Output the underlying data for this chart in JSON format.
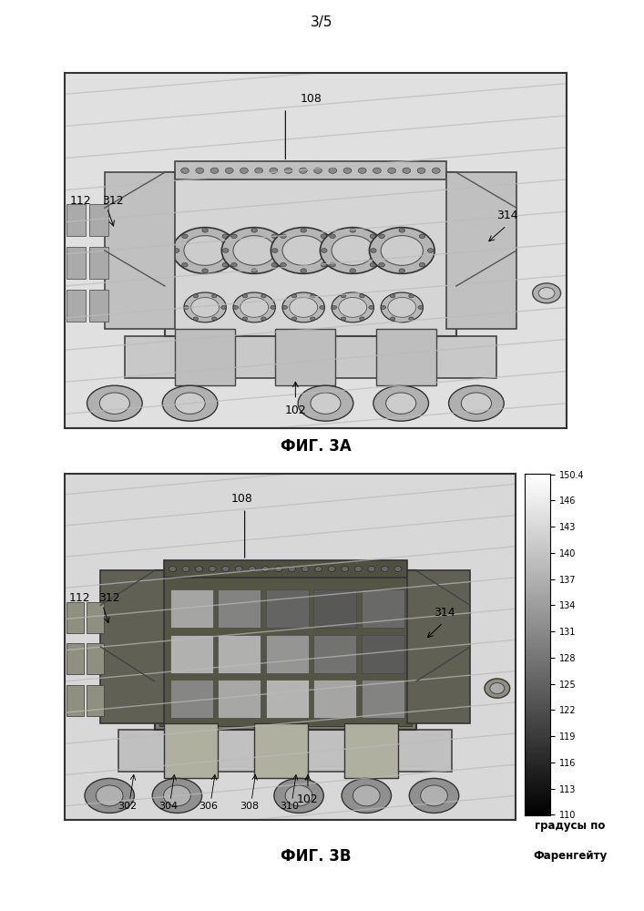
{
  "page_number": "3/5",
  "fig3a_label": "ФИГ. 3А",
  "fig3b_label": "ФИГ. 3В",
  "colorbar_values": [
    "150.4",
    "146",
    "143",
    "140",
    "137",
    "134",
    "131",
    "128",
    "125",
    "122",
    "119",
    "116",
    "113",
    "110"
  ],
  "colorbar_label_line1": "градусы по",
  "colorbar_label_line2": "Фаренгейту",
  "bg_color": "#ffffff",
  "label_fontsize": 9,
  "fig_label_fontsize": 12
}
